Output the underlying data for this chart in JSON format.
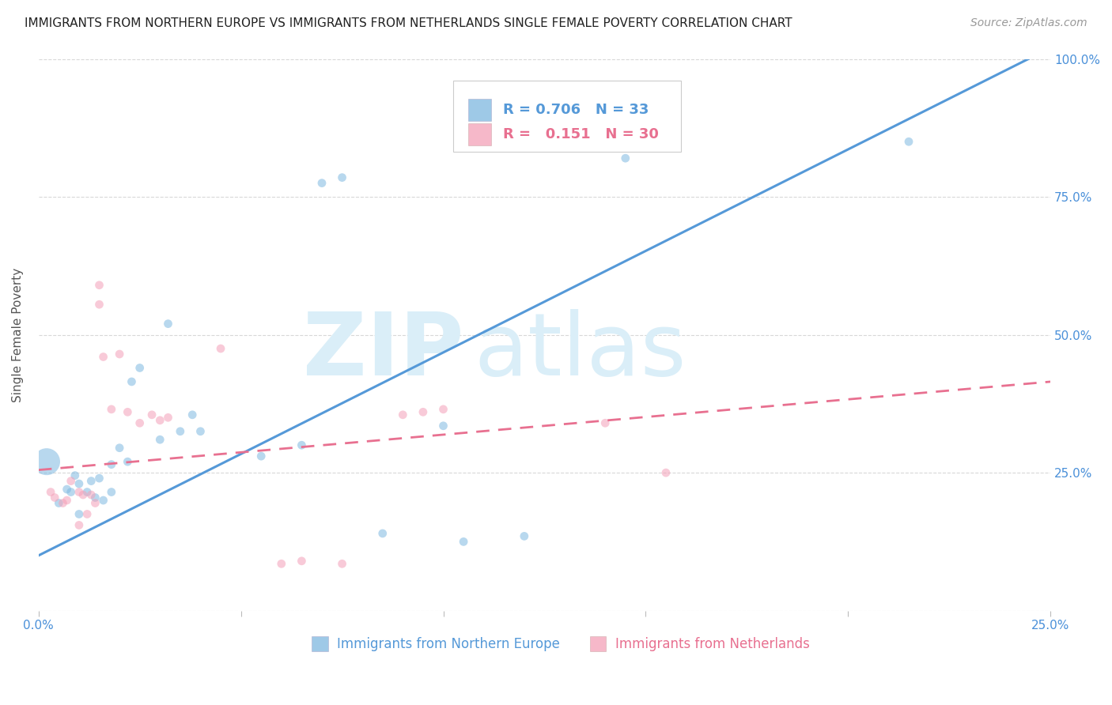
{
  "title": "IMMIGRANTS FROM NORTHERN EUROPE VS IMMIGRANTS FROM NETHERLANDS SINGLE FEMALE POVERTY CORRELATION CHART",
  "source": "Source: ZipAtlas.com",
  "xlabel_blue": "Immigrants from Northern Europe",
  "xlabel_pink": "Immigrants from Netherlands",
  "ylabel": "Single Female Poverty",
  "R_blue": 0.706,
  "N_blue": 33,
  "R_pink": 0.151,
  "N_pink": 30,
  "xlim": [
    0.0,
    0.25
  ],
  "ylim": [
    0.0,
    1.0
  ],
  "color_blue": "#7eb8e0",
  "color_pink": "#f4a0b8",
  "line_blue": "#5599d8",
  "line_pink": "#e87090",
  "watermark_zip": "ZIP",
  "watermark_atlas": "atlas",
  "watermark_color": "#daeef8",
  "blue_points_x": [
    0.002,
    0.005,
    0.007,
    0.008,
    0.009,
    0.01,
    0.01,
    0.012,
    0.013,
    0.014,
    0.015,
    0.016,
    0.018,
    0.018,
    0.02,
    0.022,
    0.023,
    0.025,
    0.03,
    0.032,
    0.035,
    0.038,
    0.04,
    0.055,
    0.065,
    0.07,
    0.075,
    0.085,
    0.1,
    0.105,
    0.12,
    0.145,
    0.215
  ],
  "blue_points_y": [
    0.27,
    0.195,
    0.22,
    0.215,
    0.245,
    0.23,
    0.175,
    0.215,
    0.235,
    0.205,
    0.24,
    0.2,
    0.265,
    0.215,
    0.295,
    0.27,
    0.415,
    0.44,
    0.31,
    0.52,
    0.325,
    0.355,
    0.325,
    0.28,
    0.3,
    0.775,
    0.785,
    0.14,
    0.335,
    0.125,
    0.135,
    0.82,
    0.85
  ],
  "blue_points_size": [
    600,
    60,
    60,
    60,
    60,
    60,
    60,
    60,
    60,
    60,
    60,
    60,
    60,
    60,
    60,
    60,
    60,
    60,
    60,
    60,
    60,
    60,
    60,
    60,
    60,
    60,
    60,
    60,
    60,
    60,
    60,
    60,
    60
  ],
  "pink_points_x": [
    0.003,
    0.004,
    0.006,
    0.007,
    0.008,
    0.01,
    0.01,
    0.011,
    0.012,
    0.013,
    0.014,
    0.015,
    0.015,
    0.016,
    0.018,
    0.02,
    0.022,
    0.025,
    0.028,
    0.03,
    0.032,
    0.045,
    0.06,
    0.065,
    0.075,
    0.09,
    0.095,
    0.1,
    0.14,
    0.155
  ],
  "pink_points_y": [
    0.215,
    0.205,
    0.195,
    0.2,
    0.235,
    0.215,
    0.155,
    0.21,
    0.175,
    0.21,
    0.195,
    0.555,
    0.59,
    0.46,
    0.365,
    0.465,
    0.36,
    0.34,
    0.355,
    0.345,
    0.35,
    0.475,
    0.085,
    0.09,
    0.085,
    0.355,
    0.36,
    0.365,
    0.34,
    0.25
  ],
  "pink_points_size": [
    60,
    60,
    60,
    60,
    60,
    60,
    60,
    60,
    60,
    60,
    60,
    60,
    60,
    60,
    60,
    60,
    60,
    60,
    60,
    60,
    60,
    60,
    60,
    60,
    60,
    60,
    60,
    60,
    60,
    60
  ],
  "blue_line_x": [
    0.0,
    0.25
  ],
  "blue_line_y": [
    0.1,
    1.02
  ],
  "pink_line_x": [
    0.0,
    0.25
  ],
  "pink_line_y": [
    0.255,
    0.415
  ],
  "title_fontsize": 11,
  "source_fontsize": 10,
  "axis_label_fontsize": 11,
  "tick_fontsize": 11,
  "legend_fontsize": 13
}
